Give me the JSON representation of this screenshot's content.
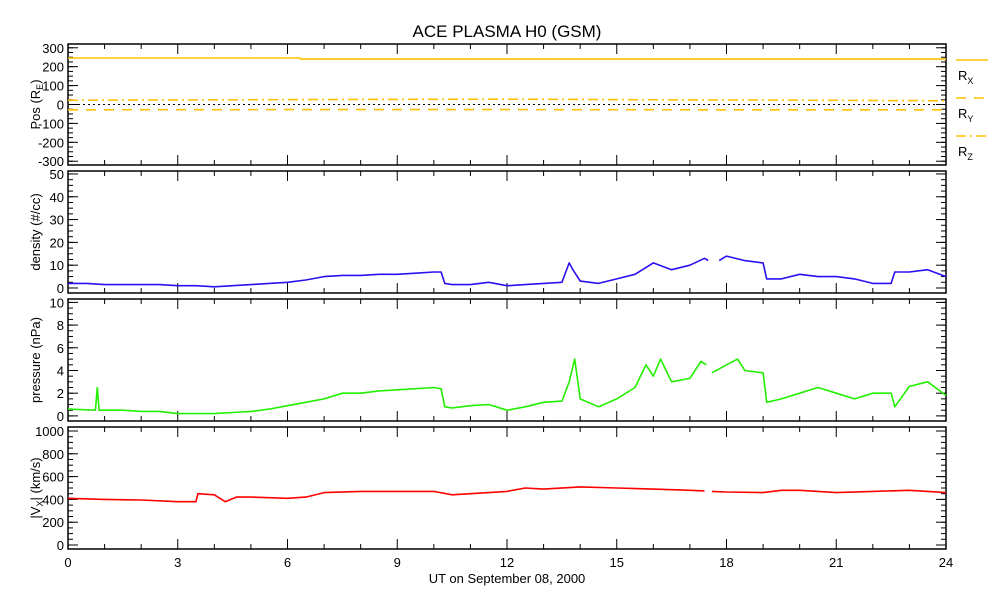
{
  "chart_data": {
    "type": "line",
    "title": "ACE PLASMA H0 (GSM)",
    "xlabel": "UT on September 08, 2000",
    "xlim": [
      0,
      24
    ],
    "xticks": [
      0,
      3,
      6,
      9,
      12,
      15,
      18,
      21,
      24
    ],
    "grid": false,
    "panels": [
      {
        "name": "position",
        "ylabel": "Pos (R",
        "ylabel_sub": "E",
        "ylabel_end": ")",
        "ylim": [
          -320,
          320
        ],
        "yticks": [
          300,
          200,
          100,
          0,
          -100,
          -200,
          -300
        ],
        "zero_line": true,
        "legend": [
          {
            "label": "R",
            "sub": "X",
            "style": "solid"
          },
          {
            "label": "R",
            "sub": "Y",
            "style": "dash"
          },
          {
            "label": "R",
            "sub": "Z",
            "style": "dashdot"
          }
        ],
        "series": [
          {
            "name": "Rx",
            "color": "#ffc000",
            "style": "solid",
            "x": [
              0,
              6.35,
              6.36,
              24
            ],
            "y": [
              246,
              246,
              240,
              240
            ]
          },
          {
            "name": "Ry",
            "color": "#ffc000",
            "style": "dash",
            "x": [
              0,
              6,
              12,
              18,
              24
            ],
            "y": [
              -28,
              -27,
              -27,
              -28,
              -28
            ]
          },
          {
            "name": "Rz",
            "color": "#ffc000",
            "style": "dashdot",
            "x": [
              0,
              6,
              12,
              18,
              24
            ],
            "y": [
              22,
              26,
              28,
              24,
              20
            ]
          }
        ]
      },
      {
        "name": "density",
        "ylabel": "density (#/cc)",
        "ylim": [
          -2.2,
          51.3
        ],
        "yticks": [
          50,
          40,
          30,
          20,
          10,
          0
        ],
        "series": [
          {
            "name": "density",
            "color": "#2a10f0",
            "style": "solid",
            "x": [
              0,
              0.5,
              1,
              1.5,
              2,
              2.5,
              3,
              3.5,
              4,
              4.5,
              5,
              5.5,
              6,
              6.5,
              7,
              7.5,
              8,
              8.5,
              9,
              9.5,
              10,
              10.2,
              10.3,
              10.5,
              11,
              11.5,
              12,
              12.5,
              13,
              13.5,
              13.7,
              13.8,
              14,
              14.5,
              15,
              15.5,
              16,
              16.5,
              17,
              17.4,
              17.5,
              17.6,
              17.8,
              18,
              18.5,
              19,
              19.1,
              19.5,
              20,
              20.5,
              21,
              21.5,
              22,
              22.5,
              22.6,
              23,
              23.5,
              24
            ],
            "y": [
              2,
              2,
              1.5,
              1.5,
              1.5,
              1.5,
              1,
              1,
              0.5,
              1,
              1.5,
              2,
              2.5,
              3.5,
              5,
              5.5,
              5.5,
              6,
              6,
              6.5,
              7,
              7,
              2,
              1.5,
              1.5,
              2.5,
              1,
              1.5,
              2,
              2.5,
              11,
              8,
              3,
              2,
              4,
              6,
              11,
              8,
              10,
              13,
              12,
              null,
              12,
              14,
              12,
              11,
              4,
              4,
              6,
              5,
              5,
              4,
              2,
              2,
              7,
              7,
              8,
              5
            ]
          }
        ]
      },
      {
        "name": "pressure",
        "ylabel": "pressure (nPa)",
        "ylim": [
          -0.45,
          10.3
        ],
        "yticks": [
          10,
          8,
          6,
          4,
          2,
          0
        ],
        "series": [
          {
            "name": "pressure",
            "color": "#22f000",
            "style": "solid",
            "x": [
              0,
              0.75,
              0.8,
              0.85,
              1.5,
              2,
              2.5,
              3,
              3.5,
              4,
              4.5,
              5,
              5.5,
              6,
              6.5,
              7,
              7.5,
              8,
              8.5,
              9,
              9.5,
              10,
              10.2,
              10.3,
              10.5,
              11,
              11.5,
              12,
              12.5,
              13,
              13.5,
              13.7,
              13.85,
              14,
              14.5,
              15,
              15.5,
              15.8,
              16,
              16.2,
              16.5,
              17,
              17.3,
              17.45,
              17.5,
              17.6,
              18,
              18.3,
              18.5,
              19,
              19.1,
              19.5,
              20,
              20.5,
              21,
              21.5,
              22,
              22.5,
              22.6,
              23,
              23.5,
              24
            ],
            "y": [
              0.6,
              0.5,
              2.5,
              0.5,
              0.5,
              0.4,
              0.4,
              0.2,
              0.2,
              0.2,
              0.3,
              0.4,
              0.6,
              0.9,
              1.2,
              1.5,
              2,
              2,
              2.2,
              2.3,
              2.4,
              2.5,
              2.4,
              0.8,
              0.7,
              0.9,
              1,
              0.5,
              0.8,
              1.2,
              1.3,
              3,
              5,
              1.5,
              0.8,
              1.5,
              2.5,
              4.5,
              3.5,
              5,
              3,
              3.3,
              4.8,
              4.5,
              null,
              3.8,
              4.5,
              5,
              4,
              3.8,
              1.2,
              1.5,
              2,
              2.5,
              2,
              1.5,
              2,
              2,
              0.8,
              2.6,
              3,
              1.8
            ]
          }
        ]
      },
      {
        "name": "velocity",
        "ylabel": "|V",
        "ylabel_sub": "X",
        "ylabel_end": "| (km/s)",
        "ylim": [
          -35,
          1035
        ],
        "yticks": [
          1000,
          800,
          600,
          400,
          200,
          0
        ],
        "series": [
          {
            "name": "Vx",
            "color": "#ff0000",
            "style": "solid",
            "x": [
              0,
              1,
              2,
              3,
              3.5,
              3.55,
              4,
              4.3,
              4.6,
              5,
              6,
              6.5,
              7,
              8,
              9,
              10,
              10.5,
              11,
              11.5,
              12,
              12.5,
              13,
              14,
              15,
              16,
              17,
              17.4,
              17.5,
              17.6,
              18,
              19,
              19.5,
              20,
              21,
              22,
              23,
              24
            ],
            "y": [
              410,
              400,
              395,
              380,
              380,
              450,
              440,
              380,
              420,
              420,
              410,
              420,
              460,
              470,
              470,
              470,
              440,
              450,
              460,
              470,
              500,
              490,
              510,
              500,
              490,
              480,
              475,
              null,
              470,
              465,
              460,
              480,
              480,
              460,
              470,
              480,
              460
            ]
          }
        ]
      }
    ]
  }
}
